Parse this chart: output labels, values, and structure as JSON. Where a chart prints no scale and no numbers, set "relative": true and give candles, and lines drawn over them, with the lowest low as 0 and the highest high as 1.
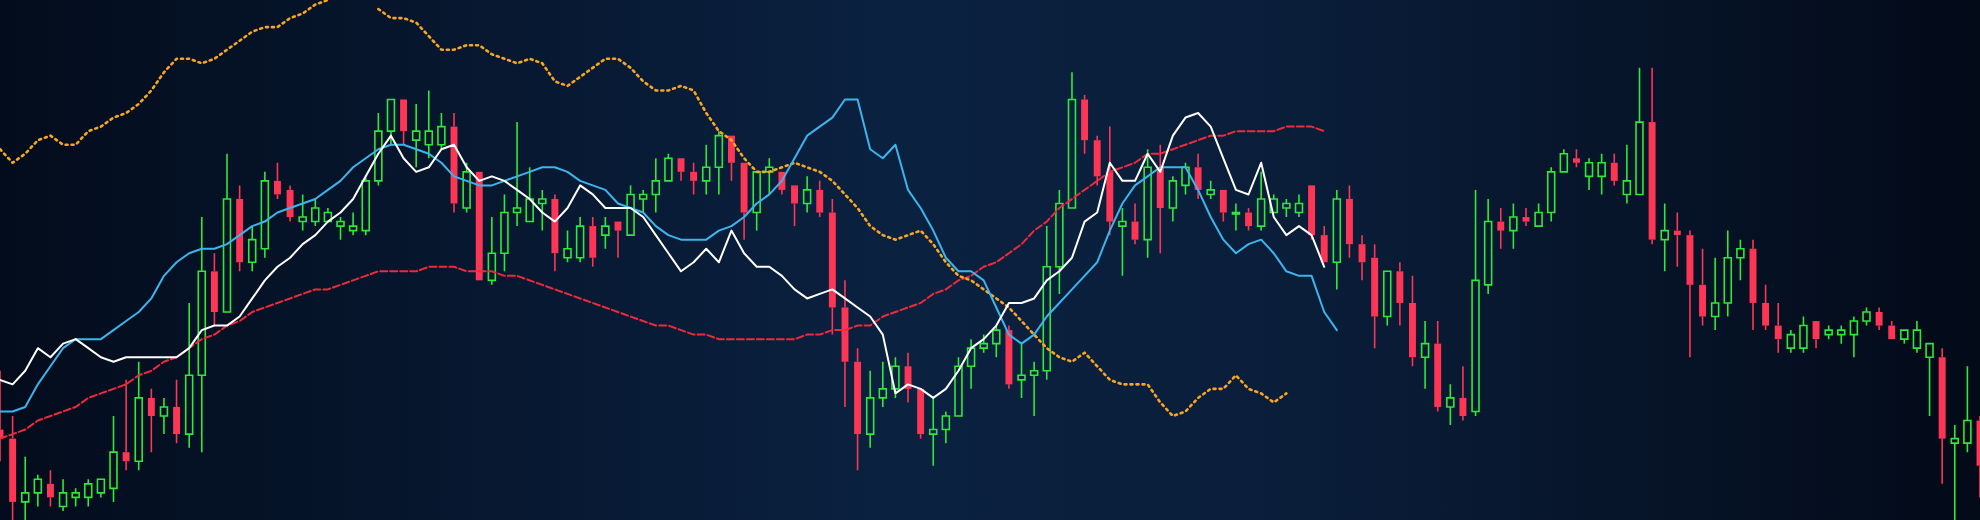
{
  "chart_data": {
    "type": "candlestick",
    "relative": true,
    "marker": "none",
    "categories": [
      null,
      null,
      null,
      null,
      null,
      null,
      null,
      null,
      null,
      null,
      null,
      null,
      null,
      null,
      null,
      null,
      null,
      null,
      null,
      null,
      null,
      null,
      null,
      null,
      null,
      null,
      null,
      null,
      null,
      null,
      null,
      null,
      null,
      null,
      null,
      null,
      null,
      null,
      null,
      null,
      null,
      null,
      null,
      null,
      null,
      null,
      null,
      null,
      null,
      null,
      null,
      null,
      null,
      null,
      null,
      null,
      null,
      null,
      null,
      null,
      null,
      null,
      null,
      null,
      null,
      null,
      null,
      null,
      null,
      null,
      null,
      null,
      null,
      null,
      null,
      null,
      null,
      null,
      null,
      null,
      null,
      null,
      null,
      null,
      null,
      null,
      null,
      null,
      null,
      null,
      null,
      null,
      null,
      null,
      null,
      null,
      null,
      null,
      null,
      null,
      null,
      null,
      null,
      null,
      null,
      null,
      null,
      null,
      null,
      null,
      null,
      null,
      null,
      null,
      null,
      null,
      null,
      null,
      null,
      null,
      null,
      null,
      null,
      null,
      null,
      null,
      null,
      null,
      null,
      null,
      null,
      null,
      null,
      null,
      null,
      null,
      null,
      null,
      null,
      null,
      null,
      null,
      null,
      null,
      null,
      null,
      null,
      null,
      null,
      null,
      null,
      null,
      null,
      null,
      null,
      null,
      null,
      null
    ],
    "ohlc": [
      [
        0.2,
        0.33,
        0.13,
        0.18
      ],
      [
        0.18,
        0.23,
        0,
        0.04
      ],
      [
        0.04,
        0.14,
        0,
        0.06
      ],
      [
        0.06,
        0.1,
        0.03,
        0.09
      ],
      [
        0.08,
        0.11,
        0.03,
        0.05
      ],
      [
        0.03,
        0.09,
        0.02,
        0.06
      ],
      [
        0.05,
        0.07,
        0.03,
        0.06
      ],
      [
        0.05,
        0.09,
        0.03,
        0.08
      ],
      [
        0.06,
        0.09,
        0.05,
        0.09
      ],
      [
        0.07,
        0.23,
        0.04,
        0.15
      ],
      [
        0.15,
        0.31,
        0.11,
        0.13
      ],
      [
        0.13,
        0.35,
        0.11,
        0.27
      ],
      [
        0.27,
        0.29,
        0.15,
        0.23
      ],
      [
        0.23,
        0.27,
        0.19,
        0.25
      ],
      [
        0.25,
        0.31,
        0.17,
        0.19
      ],
      [
        0.19,
        0.48,
        0.16,
        0.32
      ],
      [
        0.32,
        0.67,
        0.15,
        0.55
      ],
      [
        0.55,
        0.59,
        0.43,
        0.46
      ],
      [
        0.46,
        0.81,
        0.46,
        0.71
      ],
      [
        0.71,
        0.74,
        0.55,
        0.57
      ],
      [
        0.57,
        0.65,
        0.55,
        0.62
      ],
      [
        0.6,
        0.77,
        0.58,
        0.75
      ],
      [
        0.75,
        0.79,
        0.71,
        0.72
      ],
      [
        0.73,
        0.74,
        0.66,
        0.67
      ],
      [
        0.66,
        0.72,
        0.64,
        0.67
      ],
      [
        0.66,
        0.71,
        0.65,
        0.69
      ],
      [
        0.66,
        0.69,
        0.66,
        0.68
      ],
      [
        0.65,
        0.67,
        0.62,
        0.66
      ],
      [
        0.64,
        0.68,
        0.63,
        0.65
      ],
      [
        0.64,
        0.76,
        0.63,
        0.75
      ],
      [
        0.75,
        0.9,
        0.74,
        0.86
      ],
      [
        0.86,
        0.93,
        0.83,
        0.93
      ],
      [
        0.93,
        0.93,
        0.83,
        0.86
      ],
      [
        0.84,
        0.92,
        0.78,
        0.86
      ],
      [
        0.83,
        0.95,
        0.8,
        0.86
      ],
      [
        0.83,
        0.9,
        0.82,
        0.87
      ],
      [
        0.87,
        0.9,
        0.68,
        0.7
      ],
      [
        0.69,
        0.79,
        0.68,
        0.77
      ],
      [
        0.77,
        0.77,
        0.53,
        0.53
      ],
      [
        0.53,
        0.67,
        0.52,
        0.59
      ],
      [
        0.59,
        0.72,
        0.55,
        0.68
      ],
      [
        0.68,
        0.88,
        0.65,
        0.69
      ],
      [
        0.66,
        0.78,
        0.66,
        0.71
      ],
      [
        0.7,
        0.73,
        0.64,
        0.71
      ],
      [
        0.71,
        0.72,
        0.55,
        0.59
      ],
      [
        0.58,
        0.64,
        0.57,
        0.6
      ],
      [
        0.58,
        0.67,
        0.57,
        0.65
      ],
      [
        0.65,
        0.67,
        0.56,
        0.58
      ],
      [
        0.63,
        0.67,
        0.6,
        0.65
      ],
      [
        0.66,
        0.66,
        0.58,
        0.64
      ],
      [
        0.63,
        0.74,
        0.63,
        0.72
      ],
      [
        0.71,
        0.73,
        0.68,
        0.72
      ],
      [
        0.72,
        0.8,
        0.68,
        0.75
      ],
      [
        0.75,
        0.81,
        0.75,
        0.8
      ],
      [
        0.8,
        0.8,
        0.75,
        0.77
      ],
      [
        0.77,
        0.79,
        0.72,
        0.75
      ],
      [
        0.75,
        0.83,
        0.72,
        0.78
      ],
      [
        0.78,
        0.86,
        0.72,
        0.85
      ],
      [
        0.85,
        0.85,
        0.75,
        0.79
      ],
      [
        0.79,
        0.79,
        0.62,
        0.68
      ],
      [
        0.68,
        0.77,
        0.64,
        0.77
      ],
      [
        0.77,
        0.8,
        0.72,
        0.78
      ],
      [
        0.77,
        0.77,
        0.72,
        0.73
      ],
      [
        0.74,
        0.74,
        0.65,
        0.7
      ],
      [
        0.7,
        0.76,
        0.68,
        0.73
      ],
      [
        0.73,
        0.75,
        0.67,
        0.68
      ],
      [
        0.68,
        0.71,
        0.41,
        0.47
      ],
      [
        0.47,
        0.53,
        0.25,
        0.35
      ],
      [
        0.35,
        0.38,
        0.11,
        0.19
      ],
      [
        0.19,
        0.33,
        0.16,
        0.27
      ],
      [
        0.27,
        0.35,
        0.25,
        0.29
      ],
      [
        0.29,
        0.36,
        0.27,
        0.34
      ],
      [
        0.34,
        0.37,
        0.26,
        0.29
      ],
      [
        0.29,
        0.29,
        0.18,
        0.19
      ],
      [
        0.19,
        0.27,
        0.12,
        0.2
      ],
      [
        0.2,
        0.24,
        0.17,
        0.23
      ],
      [
        0.23,
        0.36,
        0.23,
        0.34
      ],
      [
        0.34,
        0.4,
        0.29,
        0.38
      ],
      [
        0.38,
        0.41,
        0.37,
        0.39
      ],
      [
        0.39,
        0.43,
        0.36,
        0.42
      ],
      [
        0.42,
        0.43,
        0.29,
        0.3
      ],
      [
        0.31,
        0.39,
        0.27,
        0.32
      ],
      [
        0.32,
        0.35,
        0.23,
        0.33
      ],
      [
        0.33,
        0.65,
        0.31,
        0.56
      ],
      [
        0.56,
        0.73,
        0.5,
        0.7
      ],
      [
        0.69,
        0.99,
        0.69,
        0.93
      ],
      [
        0.93,
        0.94,
        0.81,
        0.84
      ],
      [
        0.84,
        0.85,
        0.74,
        0.76
      ],
      [
        0.77,
        0.87,
        0.63,
        0.66
      ],
      [
        0.65,
        0.69,
        0.54,
        0.66
      ],
      [
        0.66,
        0.7,
        0.61,
        0.62
      ],
      [
        0.62,
        0.82,
        0.58,
        0.78
      ],
      [
        0.78,
        0.83,
        0.59,
        0.69
      ],
      [
        0.69,
        0.76,
        0.66,
        0.75
      ],
      [
        0.74,
        0.79,
        0.72,
        0.78
      ],
      [
        0.78,
        0.81,
        0.71,
        0.73
      ],
      [
        0.72,
        0.75,
        0.71,
        0.73
      ],
      [
        0.73,
        0.73,
        0.66,
        0.68
      ],
      [
        0.68,
        0.7,
        0.64,
        0.68
      ],
      [
        0.68,
        0.69,
        0.64,
        0.65
      ],
      [
        0.65,
        0.77,
        0.64,
        0.71
      ],
      [
        0.68,
        0.72,
        0.68,
        0.71
      ],
      [
        0.69,
        0.71,
        0.67,
        0.7
      ],
      [
        0.68,
        0.72,
        0.67,
        0.7
      ],
      [
        0.74,
        0.74,
        0.62,
        0.63
      ],
      [
        0.63,
        0.65,
        0.57,
        0.57
      ],
      [
        0.57,
        0.73,
        0.51,
        0.71
      ],
      [
        0.71,
        0.74,
        0.58,
        0.61
      ],
      [
        0.61,
        0.63,
        0.53,
        0.57
      ],
      [
        0.58,
        0.61,
        0.38,
        0.45
      ],
      [
        0.45,
        0.55,
        0.43,
        0.55
      ],
      [
        0.55,
        0.57,
        0.43,
        0.48
      ],
      [
        0.48,
        0.54,
        0.34,
        0.36
      ],
      [
        0.36,
        0.44,
        0.29,
        0.39
      ],
      [
        0.39,
        0.44,
        0.24,
        0.25
      ],
      [
        0.25,
        0.3,
        0.21,
        0.27
      ],
      [
        0.27,
        0.34,
        0.22,
        0.23
      ],
      [
        0.24,
        0.73,
        0.23,
        0.53
      ],
      [
        0.52,
        0.71,
        0.5,
        0.66
      ],
      [
        0.66,
        0.69,
        0.6,
        0.64
      ],
      [
        0.64,
        0.7,
        0.6,
        0.67
      ],
      [
        0.67,
        0.69,
        0.65,
        0.66
      ],
      [
        0.65,
        0.7,
        0.65,
        0.68
      ],
      [
        0.68,
        0.78,
        0.66,
        0.77
      ],
      [
        0.77,
        0.82,
        0.77,
        0.81
      ],
      [
        0.8,
        0.82,
        0.78,
        0.79
      ],
      [
        0.76,
        0.8,
        0.73,
        0.79
      ],
      [
        0.76,
        0.81,
        0.72,
        0.79
      ],
      [
        0.79,
        0.81,
        0.74,
        0.75
      ],
      [
        0.72,
        0.83,
        0.7,
        0.75
      ],
      [
        0.72,
        1,
        0.72,
        0.88
      ],
      [
        0.88,
        1,
        0.61,
        0.62
      ],
      [
        0.62,
        0.7,
        0.55,
        0.64
      ],
      [
        0.64,
        0.68,
        0.56,
        0.63
      ],
      [
        0.63,
        0.64,
        0.36,
        0.52
      ],
      [
        0.52,
        0.6,
        0.43,
        0.45
      ],
      [
        0.45,
        0.58,
        0.42,
        0.48
      ],
      [
        0.48,
        0.64,
        0.45,
        0.58
      ],
      [
        0.58,
        0.62,
        0.53,
        0.6
      ],
      [
        0.6,
        0.62,
        0.42,
        0.48
      ],
      [
        0.48,
        0.52,
        0.42,
        0.43
      ],
      [
        0.43,
        0.48,
        0.37,
        0.4
      ],
      [
        0.38,
        0.42,
        0.37,
        0.41
      ],
      [
        0.38,
        0.45,
        0.37,
        0.43
      ],
      [
        0.44,
        0.44,
        0.38,
        0.4
      ],
      [
        0.41,
        0.43,
        0.4,
        0.42
      ],
      [
        0.41,
        0.43,
        0.39,
        0.42
      ],
      [
        0.41,
        0.45,
        0.36,
        0.44
      ],
      [
        0.44,
        0.47,
        0.43,
        0.46
      ],
      [
        0.46,
        0.47,
        0.42,
        0.43
      ],
      [
        0.43,
        0.44,
        0.4,
        0.4
      ],
      [
        0.4,
        0.42,
        0.39,
        0.42
      ],
      [
        0.38,
        0.44,
        0.37,
        0.42
      ],
      [
        0.36,
        0.39,
        0.23,
        0.39
      ],
      [
        0.36,
        0.38,
        0.08,
        0.18
      ],
      [
        0.17,
        0.21,
        0,
        0.18
      ],
      [
        0.17,
        0.34,
        0.15,
        0.22
      ],
      [
        0.22,
        0.23,
        0.05,
        0.12
      ]
    ],
    "colors": [
      "#fe3554",
      "#fe3554",
      "#2ee83a",
      "#2ee83a",
      "#fe3554",
      "#2ee83a",
      "#2ee83a",
      "#2ee83a",
      "#2ee83a",
      "#2ee83a",
      "#fe3554",
      "#2ee83a",
      "#fe3554",
      "#2ee83a",
      "#fe3554",
      "#2ee83a",
      "#2ee83a",
      "#fe3554",
      "#2ee83a",
      "#fe3554",
      "#2ee83a",
      "#2ee83a",
      "#fe3554",
      "#fe3554",
      "#2ee83a",
      "#2ee83a",
      "#2ee83a",
      "#2ee83a",
      "#2ee83a",
      "#2ee83a",
      "#2ee83a",
      "#2ee83a",
      "#fe3554",
      "#2ee83a",
      "#2ee83a",
      "#2ee83a",
      "#fe3554",
      "#2ee83a",
      "#fe3554",
      "#2ee83a",
      "#2ee83a",
      "#2ee83a",
      "#2ee83a",
      "#2ee83a",
      "#fe3554",
      "#2ee83a",
      "#2ee83a",
      "#fe3554",
      "#2ee83a",
      "#fe3554",
      "#2ee83a",
      "#2ee83a",
      "#2ee83a",
      "#2ee83a",
      "#fe3554",
      "#fe3554",
      "#2ee83a",
      "#2ee83a",
      "#fe3554",
      "#fe3554",
      "#2ee83a",
      "#2ee83a",
      "#fe3554",
      "#fe3554",
      "#2ee83a",
      "#fe3554",
      "#fe3554",
      "#fe3554",
      "#fe3554",
      "#2ee83a",
      "#2ee83a",
      "#2ee83a",
      "#fe3554",
      "#fe3554",
      "#2ee83a",
      "#2ee83a",
      "#2ee83a",
      "#2ee83a",
      "#2ee83a",
      "#2ee83a",
      "#fe3554",
      "#2ee83a",
      "#2ee83a",
      "#2ee83a",
      "#2ee83a",
      "#2ee83a",
      "#fe3554",
      "#fe3554",
      "#fe3554",
      "#2ee83a",
      "#fe3554",
      "#2ee83a",
      "#fe3554",
      "#2ee83a",
      "#2ee83a",
      "#fe3554",
      "#2ee83a",
      "#fe3554",
      "#2ee83a",
      "#fe3554",
      "#2ee83a",
      "#2ee83a",
      "#2ee83a",
      "#2ee83a",
      "#fe3554",
      "#fe3554",
      "#2ee83a",
      "#fe3554",
      "#fe3554",
      "#fe3554",
      "#2ee83a",
      "#fe3554",
      "#fe3554",
      "#2ee83a",
      "#fe3554",
      "#2ee83a",
      "#fe3554",
      "#2ee83a",
      "#2ee83a",
      "#fe3554",
      "#2ee83a",
      "#fe3554",
      "#2ee83a",
      "#2ee83a",
      "#2ee83a",
      "#fe3554",
      "#2ee83a",
      "#2ee83a",
      "#fe3554",
      "#2ee83a",
      "#2ee83a",
      "#fe3554",
      "#2ee83a",
      "#fe3554",
      "#fe3554",
      "#fe3554",
      "#2ee83a",
      "#2ee83a",
      "#2ee83a",
      "#fe3554",
      "#fe3554",
      "#fe3554",
      "#2ee83a",
      "#2ee83a",
      "#fe3554",
      "#2ee83a",
      "#2ee83a",
      "#2ee83a",
      "#2ee83a",
      "#fe3554",
      "#fe3554",
      "#2ee83a",
      "#2ee83a",
      "#2ee83a",
      "#fe3554",
      "#2ee83a",
      "#2ee83a",
      "#fe3554"
    ],
    "series": [
      {
        "type": "line",
        "color": "#ffffff",
        "line_style": "solid",
        "values": [
          0.31,
          0.3,
          0.33,
          0.38,
          0.36,
          0.39,
          0.4,
          0.38,
          0.36,
          0.35,
          0.36,
          0.36,
          0.36,
          0.36,
          0.36,
          0.38,
          0.42,
          0.43,
          0.43,
          0.45,
          0.49,
          0.53,
          0.56,
          0.58,
          0.61,
          0.63,
          0.66,
          0.68,
          0.71,
          0.76,
          0.81,
          0.85,
          0.8,
          0.77,
          0.78,
          0.82,
          0.83,
          0.78,
          0.75,
          0.76,
          0.75,
          0.73,
          0.71,
          0.68,
          0.66,
          0.69,
          0.74,
          0.72,
          0.69,
          0.69,
          0.69,
          0.67,
          0.63,
          0.59,
          0.55,
          0.57,
          0.6,
          0.57,
          0.64,
          0.59,
          0.56,
          0.56,
          0.54,
          0.51,
          0.49,
          0.5,
          0.51,
          0.49,
          0.47,
          0.45,
          0.41,
          0.28,
          0.3,
          0.29,
          0.27,
          0.29,
          0.33,
          0.38,
          0.4,
          0.43,
          0.48,
          0.48,
          0.49,
          0.53,
          0.55,
          0.58,
          0.66,
          0.68,
          0.79,
          0.75,
          0.75,
          0.81,
          0.77,
          0.85,
          0.89,
          0.9,
          0.87,
          0.8,
          0.73,
          0.72,
          0.79,
          0.67,
          0.63,
          0.65,
          0.63,
          0.56,
          null,
          null,
          null,
          null,
          null,
          null,
          null,
          null,
          null,
          null,
          null,
          null,
          null,
          null,
          null,
          null,
          null,
          null,
          null,
          null,
          null,
          null,
          null,
          null,
          null,
          null,
          null,
          null,
          null,
          null,
          null,
          null,
          null,
          null,
          null,
          null,
          null,
          null,
          null,
          null,
          null,
          null,
          null,
          null,
          null,
          null,
          null,
          null,
          null,
          null,
          null,
          null
        ]
      },
      {
        "type": "line",
        "color": "#3bb5ec",
        "line_style": "solid",
        "values": [
          0.24,
          0.24,
          0.25,
          0.3,
          0.34,
          0.38,
          0.4,
          0.4,
          0.4,
          0.42,
          0.44,
          0.46,
          0.49,
          0.54,
          0.57,
          0.59,
          0.6,
          0.6,
          0.61,
          0.63,
          0.65,
          0.66,
          0.68,
          0.69,
          0.7,
          0.71,
          0.73,
          0.75,
          0.78,
          0.8,
          0.82,
          0.83,
          0.83,
          0.82,
          0.81,
          0.79,
          0.76,
          0.75,
          0.74,
          0.74,
          0.75,
          0.76,
          0.77,
          0.78,
          0.78,
          0.77,
          0.75,
          0.74,
          0.73,
          0.7,
          0.69,
          0.68,
          0.65,
          0.63,
          0.62,
          0.62,
          0.62,
          0.64,
          0.65,
          0.67,
          0.7,
          0.72,
          0.75,
          0.8,
          0.85,
          0.87,
          0.89,
          0.93,
          0.93,
          0.82,
          0.8,
          0.83,
          0.73,
          0.69,
          0.64,
          0.58,
          0.55,
          0.55,
          0.53,
          0.47,
          0.41,
          0.39,
          0.41,
          0.45,
          0.48,
          0.51,
          0.54,
          0.57,
          0.64,
          0.7,
          0.74,
          0.76,
          0.78,
          0.78,
          0.78,
          0.73,
          0.67,
          0.62,
          0.59,
          0.61,
          0.62,
          0.59,
          0.55,
          0.54,
          0.54,
          0.46,
          0.42,
          null,
          null,
          null,
          null,
          null,
          null,
          null,
          null,
          null,
          null,
          null,
          null,
          null,
          null,
          null,
          null,
          null,
          null,
          null,
          null,
          null,
          null,
          null,
          null,
          null,
          null,
          null,
          null,
          null,
          null,
          null,
          null,
          null,
          null,
          null,
          null,
          null,
          null,
          null,
          null,
          null,
          null,
          null,
          null,
          null,
          null,
          null,
          null,
          null,
          null,
          null
        ]
      },
      {
        "type": "line",
        "color": "#f5a623",
        "line_style": "dotted",
        "values": [
          0.82,
          0.79,
          0.81,
          0.84,
          0.85,
          0.83,
          0.83,
          0.86,
          0.87,
          0.89,
          0.9,
          0.92,
          0.95,
          0.99,
          1.02,
          1.02,
          1.01,
          1.02,
          1.04,
          1.06,
          1.08,
          1.09,
          1.09,
          1.11,
          1.12,
          1.14,
          1.15,
          null,
          null,
          null,
          1.13,
          1.11,
          1.11,
          1.1,
          1.07,
          1.04,
          1.04,
          1.05,
          1.05,
          1.03,
          1.02,
          1.01,
          1.02,
          1.01,
          0.97,
          0.96,
          0.98,
          1.0,
          1.02,
          1.02,
          1.0,
          0.97,
          0.95,
          0.95,
          0.96,
          0.95,
          0.9,
          0.86,
          0.84,
          0.8,
          0.77,
          0.77,
          0.78,
          0.79,
          0.78,
          0.77,
          0.75,
          0.72,
          0.69,
          0.65,
          0.63,
          0.62,
          0.63,
          0.64,
          0.61,
          0.57,
          0.54,
          0.53,
          0.51,
          0.49,
          0.47,
          0.44,
          0.41,
          0.38,
          0.36,
          0.35,
          0.37,
          0.34,
          0.31,
          0.3,
          0.3,
          0.3,
          0.26,
          0.23,
          0.24,
          0.27,
          0.29,
          0.29,
          0.32,
          0.29,
          0.28,
          0.26,
          0.28,
          null,
          null,
          null,
          null,
          null,
          null,
          null,
          null,
          null,
          null,
          null,
          null,
          null,
          null,
          null,
          null,
          null,
          null,
          null,
          null,
          null,
          null,
          null,
          null,
          null,
          null,
          null,
          null,
          null,
          null,
          null,
          null,
          null,
          null,
          null,
          null,
          null,
          null,
          null,
          null,
          null,
          null,
          null,
          null,
          null,
          null,
          null,
          null,
          null,
          null,
          null,
          null,
          null,
          null,
          null
        ]
      },
      {
        "type": "line",
        "color": "#ee2a3a",
        "line_style": "dashed",
        "values": [
          0.18,
          0.19,
          0.2,
          0.22,
          0.23,
          0.24,
          0.25,
          0.27,
          0.28,
          0.29,
          0.3,
          0.32,
          0.33,
          0.35,
          0.36,
          0.38,
          0.4,
          0.41,
          0.43,
          0.44,
          0.46,
          0.47,
          0.48,
          0.49,
          0.5,
          0.51,
          0.51,
          0.52,
          0.53,
          0.54,
          0.55,
          0.55,
          0.55,
          0.55,
          0.56,
          0.56,
          0.56,
          0.55,
          0.55,
          0.55,
          0.54,
          0.54,
          0.53,
          0.52,
          0.51,
          0.5,
          0.49,
          0.48,
          0.47,
          0.46,
          0.45,
          0.44,
          0.43,
          0.43,
          0.42,
          0.41,
          0.41,
          0.4,
          0.4,
          0.4,
          0.4,
          0.4,
          0.4,
          0.4,
          0.41,
          0.41,
          0.42,
          0.42,
          0.43,
          0.43,
          0.45,
          0.46,
          0.47,
          0.48,
          0.5,
          0.51,
          0.53,
          0.54,
          0.56,
          0.57,
          0.59,
          0.61,
          0.64,
          0.66,
          0.69,
          0.71,
          0.73,
          0.75,
          0.77,
          0.78,
          0.79,
          0.81,
          0.81,
          0.82,
          0.83,
          0.84,
          0.85,
          0.85,
          0.86,
          0.86,
          0.86,
          0.86,
          0.87,
          0.87,
          0.87,
          0.86,
          null,
          null,
          null,
          null,
          null,
          null,
          null,
          null,
          null,
          null,
          null,
          null,
          null,
          null,
          null,
          null,
          null,
          null,
          null,
          null,
          null,
          null,
          null,
          null,
          null,
          null,
          null,
          null,
          null,
          null,
          null,
          null,
          null,
          null,
          null,
          null,
          null,
          null,
          null,
          null,
          null,
          null,
          null,
          null,
          null,
          null,
          null,
          null,
          null,
          null,
          null,
          null
        ]
      }
    ]
  }
}
